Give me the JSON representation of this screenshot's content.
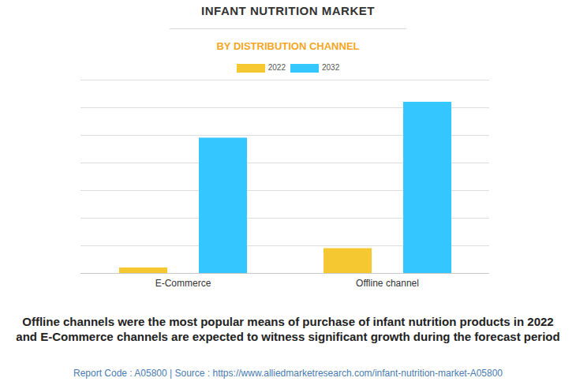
{
  "chart_data": {
    "type": "bar",
    "title": "INFANT NUTRITION MARKET",
    "subtitle": "BY DISTRIBUTION CHANNEL",
    "categories": [
      "E-Commerce",
      "Offline channel"
    ],
    "series": [
      {
        "name": "2022",
        "color": "#F5C832",
        "values": [
          0.2,
          0.9
        ]
      },
      {
        "name": "2032",
        "color": "#33C6FF",
        "values": [
          4.9,
          6.2
        ]
      }
    ],
    "ylim": [
      0,
      7
    ],
    "yticks": [
      0,
      1,
      2,
      3,
      4,
      5,
      6,
      7
    ],
    "grid": true,
    "tick_labels": "x",
    "legend": "top",
    "annotations": [
      "Offline channels were the most popular means of purchase of infant nutrition products in 2022 and E-Commerce channels are expected to witness significant growth during the forecast period",
      "Report Code : A05800  |  Source : https://www.alliedmarketresearch.com/infant-nutrition-market-A05800"
    ]
  }
}
